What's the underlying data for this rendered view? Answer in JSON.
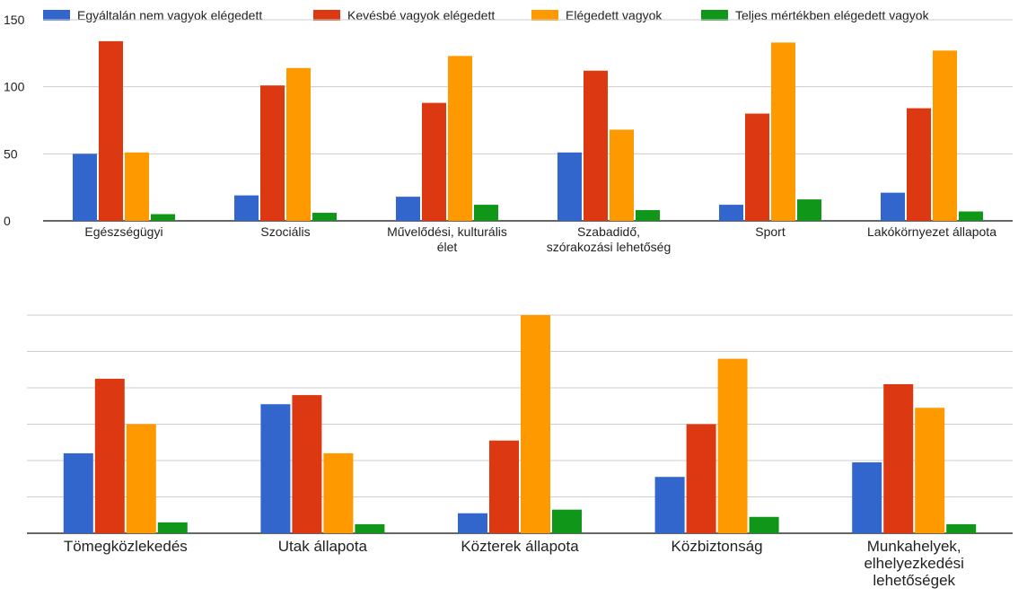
{
  "legend": [
    {
      "label": "Egyáltalán nem vagyok elégedett",
      "color": "#3366cc"
    },
    {
      "label": "Kevésbé vagyok elégedett",
      "color": "#dc3912"
    },
    {
      "label": "Elégedett vagyok",
      "color": "#ff9900"
    },
    {
      "label": "Teljes mértékben elégedett vagyok",
      "color": "#109618"
    }
  ],
  "chart_data": [
    {
      "type": "bar",
      "categories": [
        [
          "Egészségügyi"
        ],
        [
          "Szociális"
        ],
        [
          "Művelődési, kulturális",
          "élet"
        ],
        [
          "Szabadidő,",
          "szórakozási lehetőség"
        ],
        [
          "Sport"
        ],
        [
          "Lakókörnyezet állapota"
        ]
      ],
      "series": [
        {
          "name": "Egyáltalán nem vagyok elégedett",
          "values": [
            50,
            19,
            18,
            51,
            12,
            21
          ]
        },
        {
          "name": "Kevésbé vagyok elégedett",
          "values": [
            134,
            101,
            88,
            112,
            80,
            84
          ]
        },
        {
          "name": "Elégedett vagyok",
          "values": [
            51,
            114,
            123,
            68,
            133,
            127
          ]
        },
        {
          "name": "Teljes mértékben elégedett vagyok",
          "values": [
            5,
            6,
            12,
            8,
            16,
            7
          ]
        }
      ],
      "yticks": [
        "0",
        "50",
        "100",
        "150"
      ],
      "ylim": [
        0,
        150
      ],
      "grid": true,
      "legend_position": "top"
    },
    {
      "type": "bar",
      "categories": [
        [
          "Tömegközlekedés"
        ],
        [
          "Utak állapota"
        ],
        [
          "Közterek állapota"
        ],
        [
          "Közbiztonság"
        ],
        [
          "Munkahelyek,",
          "elhelyezkedési",
          "lehetőségek"
        ]
      ],
      "series": [
        {
          "name": "Egyáltalán nem vagyok elégedett",
          "values": [
            44,
            71,
            11,
            31,
            39
          ]
        },
        {
          "name": "Kevésbé vagyok elégedett",
          "values": [
            85,
            76,
            51,
            60,
            82
          ]
        },
        {
          "name": "Elégedett vagyok",
          "values": [
            60,
            44,
            120,
            96,
            69
          ]
        },
        {
          "name": "Teljes mértékben elégedett vagyok",
          "values": [
            6,
            5,
            13,
            9,
            5
          ]
        }
      ],
      "ylim": [
        0,
        120
      ],
      "grid": true
    }
  ]
}
